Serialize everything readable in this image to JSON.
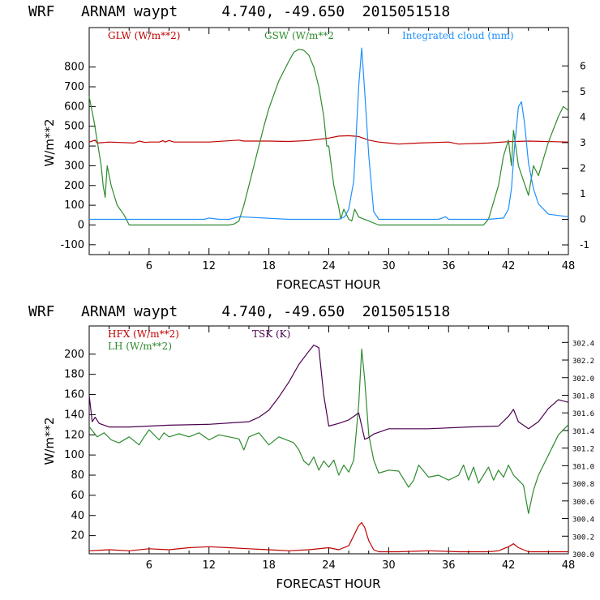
{
  "colors": {
    "red": "#c00000",
    "green": "#2e8b2e",
    "blue": "#1e90ff",
    "purple": "#4b0050",
    "axis": "#000000"
  },
  "chart_data": [
    {
      "type": "line",
      "title": "WRF   ARNAM waypt     4.740, -49.650  2015051518",
      "xlabel": "FORECAST HOUR",
      "ylabel": "W/m**2",
      "xlim": [
        0,
        48
      ],
      "ylim": [
        -150,
        1000
      ],
      "y2lim": [
        -1.38,
        7.5
      ],
      "xticks": [
        "6",
        "12",
        "18",
        "24",
        "30",
        "36",
        "42",
        "48"
      ],
      "yticks": [
        "-100",
        "0",
        "100",
        "200",
        "300",
        "400",
        "500",
        "600",
        "700",
        "800"
      ],
      "y2ticks": [
        "-1",
        "0",
        "1",
        "2",
        "3",
        "4",
        "5",
        "6"
      ],
      "series": [
        {
          "name": "GLW (W/m**2)",
          "color": "red",
          "axis": "left",
          "x": [
            0,
            0.6,
            0.8,
            2,
            4.5,
            5,
            5.6,
            6,
            7,
            7.4,
            7.6,
            8,
            8.5,
            9,
            12,
            15,
            15.5,
            18,
            20,
            22,
            24,
            25,
            26,
            27,
            28,
            29,
            30,
            31,
            33,
            36,
            37,
            40,
            42,
            44,
            48
          ],
          "values": [
            420,
            430,
            415,
            420,
            415,
            425,
            418,
            420,
            420,
            427,
            420,
            428,
            420,
            420,
            420,
            430,
            425,
            425,
            423,
            428,
            440,
            450,
            452,
            448,
            430,
            420,
            415,
            410,
            415,
            420,
            410,
            415,
            422,
            425,
            420
          ]
        },
        {
          "name": "GSW (W/m**2",
          "color": "green",
          "axis": "left",
          "x": [
            0,
            0.5,
            1.2,
            1.4,
            1.6,
            1.8,
            2.2,
            2.5,
            2.8,
            3.5,
            4,
            5,
            13,
            14,
            14.5,
            15,
            15.5,
            16,
            16.5,
            17,
            17.5,
            18,
            19,
            20,
            20.5,
            21,
            21.5,
            22,
            22.5,
            23,
            23.5,
            23.8,
            24,
            24.5,
            25,
            25.2,
            25.5,
            26,
            26.3,
            26.6,
            27,
            28,
            29,
            30,
            39.5,
            40,
            41,
            41.5,
            42,
            42.3,
            42.5,
            43,
            44,
            44.5,
            45,
            46,
            47,
            47.5,
            48
          ],
          "values": [
            650,
            520,
            300,
            200,
            140,
            300,
            200,
            150,
            100,
            50,
            0,
            0,
            0,
            0,
            5,
            20,
            100,
            200,
            300,
            400,
            500,
            590,
            730,
            830,
            875,
            890,
            885,
            860,
            800,
            700,
            550,
            400,
            400,
            200,
            90,
            30,
            80,
            30,
            20,
            80,
            40,
            20,
            0,
            0,
            0,
            30,
            200,
            350,
            430,
            300,
            480,
            300,
            150,
            300,
            250,
            420,
            550,
            600,
            580
          ]
        },
        {
          "name": "Integrated cloud (mm)",
          "color": "blue",
          "axis": "right",
          "x": [
            0,
            11.5,
            12,
            13,
            14,
            15,
            20,
            25,
            25.6,
            26,
            26.5,
            27,
            27.3,
            27.6,
            28,
            28.5,
            29,
            35,
            35.7,
            36,
            40,
            41.5,
            42,
            42.3,
            42.6,
            43,
            43.3,
            43.6,
            44,
            44.5,
            45,
            46,
            48
          ],
          "values": [
            0,
            0,
            0.05,
            0,
            0,
            0.1,
            0,
            0,
            0.1,
            0.4,
            1.5,
            5.2,
            6.7,
            5,
            2.5,
            0.3,
            0,
            0,
            0.1,
            0,
            0,
            0.05,
            0.4,
            1.2,
            2.8,
            4.4,
            4.6,
            3.8,
            2.2,
            1.2,
            0.6,
            0.2,
            0.1
          ]
        }
      ]
    },
    {
      "type": "line",
      "title": "WRF   ARNAM waypt     4.740, -49.650  2015051518",
      "xlabel": "FORECAST HOUR",
      "ylabel": "W/m**2",
      "xlim": [
        0,
        48
      ],
      "ylim": [
        2,
        228
      ],
      "y2lim": [
        300.0,
        302.587
      ],
      "xticks": [
        "6",
        "12",
        "18",
        "24",
        "30",
        "36",
        "42",
        "48"
      ],
      "yticks": [
        "20",
        "40",
        "60",
        "80",
        "100",
        "120",
        "140",
        "160",
        "180",
        "200"
      ],
      "y2ticks": [
        "300.0",
        "300.2",
        "300.4",
        "300.6",
        "300.8",
        "301.0",
        "301.2",
        "301.4",
        "301.6",
        "301.8",
        "302.0",
        "302.2",
        "302.4"
      ],
      "series": [
        {
          "name": "HFX (W/m**2)",
          "color": "red",
          "axis": "left",
          "x": [
            0,
            2,
            4,
            6,
            8,
            10,
            12,
            14,
            16,
            18,
            20,
            22,
            24,
            25,
            26,
            26.5,
            27,
            27.3,
            27.6,
            28,
            28.5,
            29,
            31,
            34,
            37,
            40,
            41,
            42,
            42.5,
            43,
            44,
            46,
            48
          ],
          "values": [
            5,
            6,
            5,
            7,
            6,
            8,
            9,
            8,
            7,
            6,
            5,
            6,
            8,
            6,
            10,
            20,
            30,
            33,
            28,
            15,
            6,
            4,
            4,
            5,
            4,
            4,
            5,
            9,
            12,
            8,
            4,
            4,
            4
          ]
        },
        {
          "name": "LH  (W/m**2)",
          "color": "green",
          "axis": "left",
          "x": [
            0,
            0.8,
            1.5,
            2.2,
            3,
            4,
            5,
            5.5,
            6,
            7,
            7.5,
            8,
            9,
            10,
            11,
            12,
            13,
            14,
            15,
            15.5,
            16,
            17,
            18,
            19,
            20,
            20.5,
            21,
            21.5,
            22,
            22.5,
            23,
            23.5,
            24,
            24.5,
            25,
            25.5,
            26,
            26.5,
            27,
            27.3,
            27.6,
            28,
            28.5,
            29,
            30,
            31,
            32,
            32.5,
            33,
            34,
            35,
            36,
            37,
            37.5,
            38,
            38.5,
            39,
            40,
            40.5,
            41,
            41.5,
            42,
            42.5,
            43,
            43.5,
            44,
            44.5,
            45,
            46,
            47,
            48
          ],
          "values": [
            128,
            118,
            122,
            115,
            112,
            118,
            110,
            118,
            125,
            115,
            122,
            118,
            121,
            118,
            122,
            115,
            120,
            118,
            116,
            105,
            118,
            122,
            110,
            118,
            114,
            112,
            105,
            94,
            90,
            98,
            85,
            94,
            88,
            95,
            80,
            90,
            83,
            95,
            150,
            205,
            175,
            120,
            95,
            82,
            85,
            84,
            68,
            75,
            90,
            78,
            80,
            75,
            80,
            90,
            75,
            88,
            72,
            88,
            75,
            85,
            78,
            90,
            80,
            75,
            70,
            42,
            65,
            80,
            100,
            120,
            130
          ]
        },
        {
          "name": "TSK (K)",
          "color": "purple",
          "axis": "right",
          "x": [
            0,
            0.3,
            0.6,
            1,
            2,
            4,
            8,
            12,
            16,
            17,
            18,
            19,
            20,
            21,
            22,
            22.5,
            23,
            23.5,
            24,
            25,
            26,
            27,
            27.3,
            27.6,
            28,
            28.5,
            30,
            34,
            38,
            41,
            42,
            42.5,
            43,
            44,
            45,
            46,
            47,
            48
          ],
          "values": [
            301.8,
            301.5,
            301.55,
            301.48,
            301.44,
            301.44,
            301.46,
            301.47,
            301.5,
            301.55,
            301.63,
            301.78,
            301.95,
            302.15,
            302.3,
            302.37,
            302.34,
            301.8,
            301.45,
            301.48,
            301.52,
            301.6,
            301.45,
            301.3,
            301.32,
            301.36,
            301.42,
            301.42,
            301.44,
            301.45,
            301.56,
            301.64,
            301.5,
            301.42,
            301.5,
            301.65,
            301.75,
            301.72
          ]
        }
      ]
    }
  ]
}
